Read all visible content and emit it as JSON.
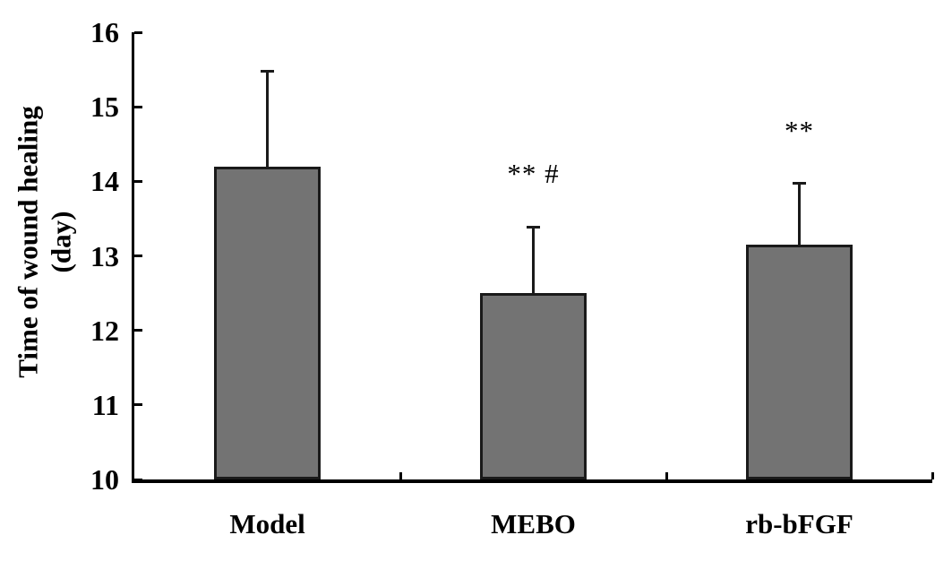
{
  "figure": {
    "background": "#ffffff",
    "axis_color": "#000000",
    "bar_fill": "#737373",
    "bar_border": "#1a1a1a"
  },
  "chart_data": {
    "type": "bar",
    "title": "",
    "ylabel_line1": "Time of wound healing",
    "ylabel_line2": "(day)",
    "xlabel": "",
    "categories": [
      "Model",
      "MEBO",
      "rb-bFGF"
    ],
    "values": [
      14.2,
      12.5,
      13.15
    ],
    "errors_upper": [
      1.28,
      0.89,
      0.82
    ],
    "annotations": [
      "",
      "** #",
      "**"
    ],
    "ylim": [
      10,
      16
    ],
    "yticks": [
      10,
      11,
      12,
      13,
      14,
      15,
      16
    ],
    "grid": false,
    "legend": null,
    "bar_color": "#737373",
    "error_bar_direction": "up"
  }
}
